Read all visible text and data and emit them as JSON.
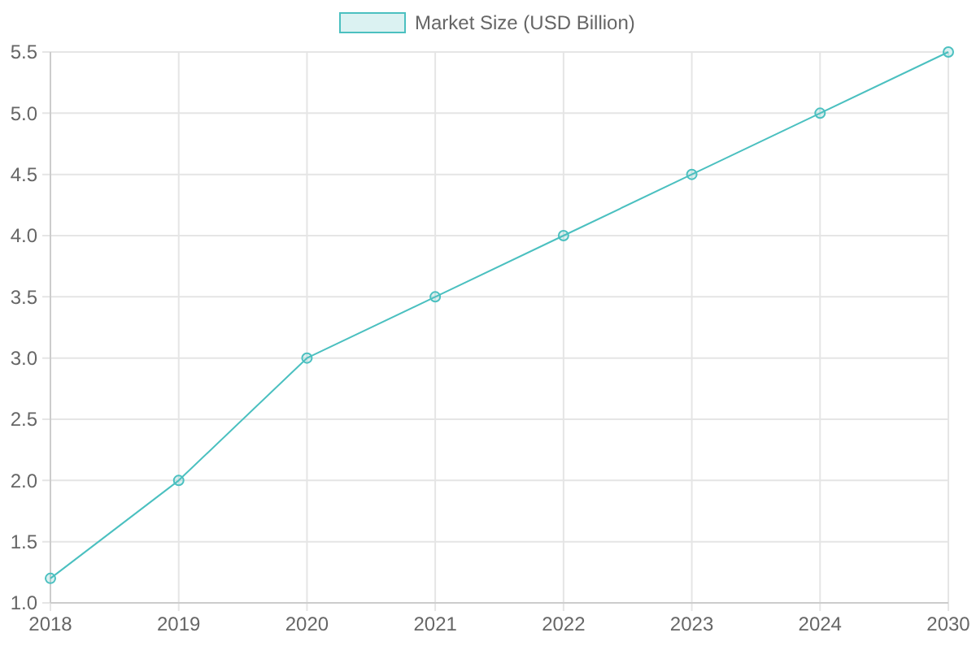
{
  "chart_data": {
    "type": "line",
    "categories": [
      "2018",
      "2019",
      "2020",
      "2021",
      "2022",
      "2023",
      "2024",
      "2030"
    ],
    "series": [
      {
        "name": "Market Size (USD Billion)",
        "color": "#4bc0c0",
        "values": [
          1.2,
          2.0,
          3.0,
          3.5,
          4.0,
          4.5,
          5.0,
          5.5
        ]
      }
    ],
    "ylim": [
      1.0,
      5.5
    ],
    "yticks": [
      {
        "value": 1.0,
        "label": "1.0"
      },
      {
        "value": 1.5,
        "label": "1.5"
      },
      {
        "value": 2.0,
        "label": "2.0"
      },
      {
        "value": 2.5,
        "label": "2.5"
      },
      {
        "value": 3.0,
        "label": "3.0"
      },
      {
        "value": 3.5,
        "label": "3.5"
      },
      {
        "value": 4.0,
        "label": "4.0"
      },
      {
        "value": 4.5,
        "label": "4.5"
      },
      {
        "value": 5.0,
        "label": "5.0"
      },
      {
        "value": 5.5,
        "label": "5.5"
      }
    ],
    "grid": true,
    "legend": "top",
    "marker": "circle",
    "line_style": "solid"
  }
}
